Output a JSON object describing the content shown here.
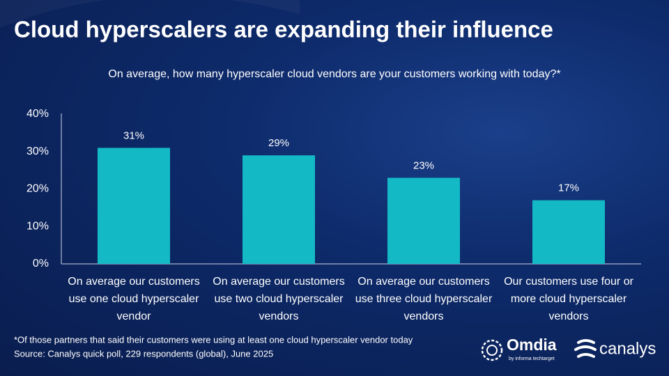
{
  "chart_data": {
    "type": "bar",
    "title": "Cloud hyperscalers are expanding their influence",
    "subtitle": "On average, how many hyperscaler cloud vendors are your customers working with today?*",
    "categories": [
      "On average our customers use one cloud hyperscaler vendor",
      "On average our customers use two cloud hyperscaler vendors",
      "On average our customers use three cloud hyperscaler vendors",
      "Our customers use four or more cloud hyperscaler vendors"
    ],
    "values": [
      31,
      29,
      23,
      17
    ],
    "value_labels": [
      "31%",
      "29%",
      "23%",
      "17%"
    ],
    "color": "#14b9c6",
    "ylim": [
      0,
      40
    ],
    "yticks": [
      {
        "value": 0,
        "label": "0%"
      },
      {
        "value": 10,
        "label": "10%"
      },
      {
        "value": 20,
        "label": "20%"
      },
      {
        "value": 30,
        "label": "30%"
      },
      {
        "value": 40,
        "label": "40%"
      }
    ],
    "grid": false,
    "footnote": "*Of those partners that said their customers were using at least one cloud hyperscaler vendor today",
    "source": "Source: Canalys quick poll, 229 respondents (global), June 2025",
    "logos": {
      "omdia": "Omdia",
      "omdia_tagline": "by informa techtarget",
      "canalys": "canalys"
    }
  }
}
